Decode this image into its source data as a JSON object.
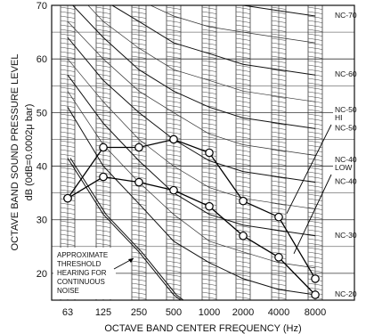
{
  "chart_data": {
    "type": "line",
    "xlabel": "OCTAVE BAND CENTER FREQUENCY (Hz)",
    "ylabel_line1": "OCTAVE BAND SOUND PRESSURE LEVEL",
    "ylabel_line2": "dB (0dB=0.0002μ bar)",
    "x_categories": [
      "63",
      "125",
      "250",
      "500",
      "1000",
      "2000",
      "4000",
      "8000"
    ],
    "y_ticks": [
      "20",
      "30",
      "40",
      "50",
      "60",
      "70"
    ],
    "ylim": [
      15,
      70
    ],
    "grid": true,
    "nc_curves": [
      {
        "label": "NC-70",
        "values": [
          84,
          78,
          75,
          72,
          71,
          70,
          69,
          68
        ]
      },
      {
        "label": "NC-60",
        "values": [
          77,
          71,
          67,
          63,
          61,
          59,
          58,
          57
        ]
      },
      {
        "label": "NC-50",
        "values": [
          71,
          64,
          58,
          54,
          51,
          49,
          48,
          47
        ]
      },
      {
        "label": "NC-40",
        "values": [
          64,
          56,
          50,
          45,
          41,
          39,
          38,
          37
        ]
      },
      {
        "label": "NC-30",
        "values": [
          57,
          48,
          41,
          35,
          31,
          29,
          28,
          27
        ]
      },
      {
        "label": "NC-20",
        "values": [
          51,
          40,
          33,
          26,
          22,
          19,
          17,
          16
        ]
      }
    ],
    "minor_curves": [
      [
        80,
        74,
        71,
        68,
        66,
        65,
        64,
        63
      ],
      [
        74,
        67,
        62,
        58,
        56,
        54,
        53,
        52
      ],
      [
        67,
        60,
        54,
        50,
        46,
        44,
        43,
        42
      ],
      [
        60,
        52,
        45,
        40,
        36,
        34,
        33,
        32
      ],
      [
        54,
        44,
        37,
        31,
        26,
        24,
        22,
        21
      ]
    ],
    "series": [
      {
        "name": "HI",
        "values": [
          34,
          43.5,
          43.5,
          45,
          42.5,
          33.5,
          30.5,
          19
        ]
      },
      {
        "name": "LOW",
        "values": [
          34,
          38,
          37,
          35.5,
          32.5,
          27,
          23,
          16
        ]
      }
    ],
    "threshold_curve": [
      41.5,
      31,
      24,
      16,
      11,
      8,
      7,
      8
    ],
    "threshold_note": [
      "APPROXIMATE",
      "THRESHOLD",
      "HEARING FOR",
      "CONTINUOUS",
      "NOISE"
    ],
    "callout_hi": [
      "NC-50",
      "HI"
    ],
    "callout_low": [
      "NC-40",
      "LOW"
    ]
  }
}
